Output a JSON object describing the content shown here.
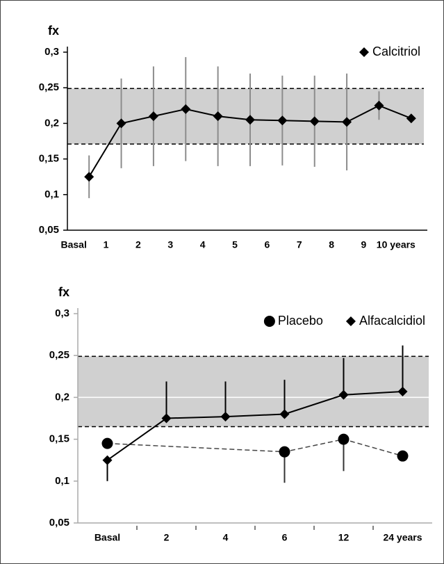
{
  "chart_data": [
    {
      "type": "line",
      "ylabel": "fx",
      "categories": [
        "Basal",
        "1",
        "2",
        "3",
        "4",
        "5",
        "6",
        "7",
        "8",
        "9",
        "10 years"
      ],
      "series": [
        {
          "name": "Calcitriol",
          "color": "#000000",
          "marker": "diamond",
          "line": "solid",
          "error_color": "#8c8c8c",
          "error_bars": "both",
          "values": [
            0.125,
            0.2,
            0.21,
            0.22,
            0.21,
            0.205,
            0.204,
            0.203,
            0.202,
            0.225,
            0.207
          ],
          "errors": [
            0.03,
            0.063,
            0.07,
            0.073,
            0.07,
            0.065,
            0.063,
            0.064,
            0.068,
            0.02,
            null
          ]
        }
      ],
      "ylim": [
        0.05,
        0.3
      ],
      "yticks": [
        {
          "value": 0.05,
          "label": "0,05"
        },
        {
          "value": 0.1,
          "label": "0,1"
        },
        {
          "value": 0.15,
          "label": "0,15"
        },
        {
          "value": 0.2,
          "label": "0,2"
        },
        {
          "value": 0.25,
          "label": "0,25"
        },
        {
          "value": 0.3,
          "label": "0,3"
        }
      ],
      "band": [
        0.171,
        0.249
      ],
      "grid": false,
      "legend": "top-right"
    },
    {
      "type": "line",
      "ylabel": "fx",
      "categories": [
        "Basal",
        "2",
        "4",
        "6",
        "12",
        "24 years"
      ],
      "series": [
        {
          "name": "Placebo",
          "color": "#000000",
          "marker": "circle",
          "line": "dashed",
          "error_color": "#333333",
          "error_bars": "down",
          "values": [
            0.145,
            null,
            null,
            0.135,
            0.15,
            0.13
          ],
          "errors": [
            null,
            null,
            null,
            0.037,
            0.038,
            null
          ]
        },
        {
          "name": "Alfacalcidiol",
          "color": "#000000",
          "marker": "diamond",
          "line": "solid",
          "error_color": "#000000",
          "error_bars": "up",
          "values": [
            0.125,
            0.175,
            0.177,
            0.18,
            0.203,
            0.207
          ],
          "errors": [
            0.025,
            0.044,
            0.042,
            0.041,
            0.044,
            0.055
          ]
        }
      ],
      "ylim": [
        0.05,
        0.3
      ],
      "yticks": [
        {
          "value": 0.05,
          "label": "0,05"
        },
        {
          "value": 0.1,
          "label": "0,1"
        },
        {
          "value": 0.15,
          "label": "0,15"
        },
        {
          "value": 0.2,
          "label": "0,2"
        },
        {
          "value": 0.25,
          "label": "0,25"
        },
        {
          "value": 0.3,
          "label": "0,3"
        }
      ],
      "band": [
        0.165,
        0.249
      ],
      "grid": true,
      "legend": "top"
    }
  ]
}
